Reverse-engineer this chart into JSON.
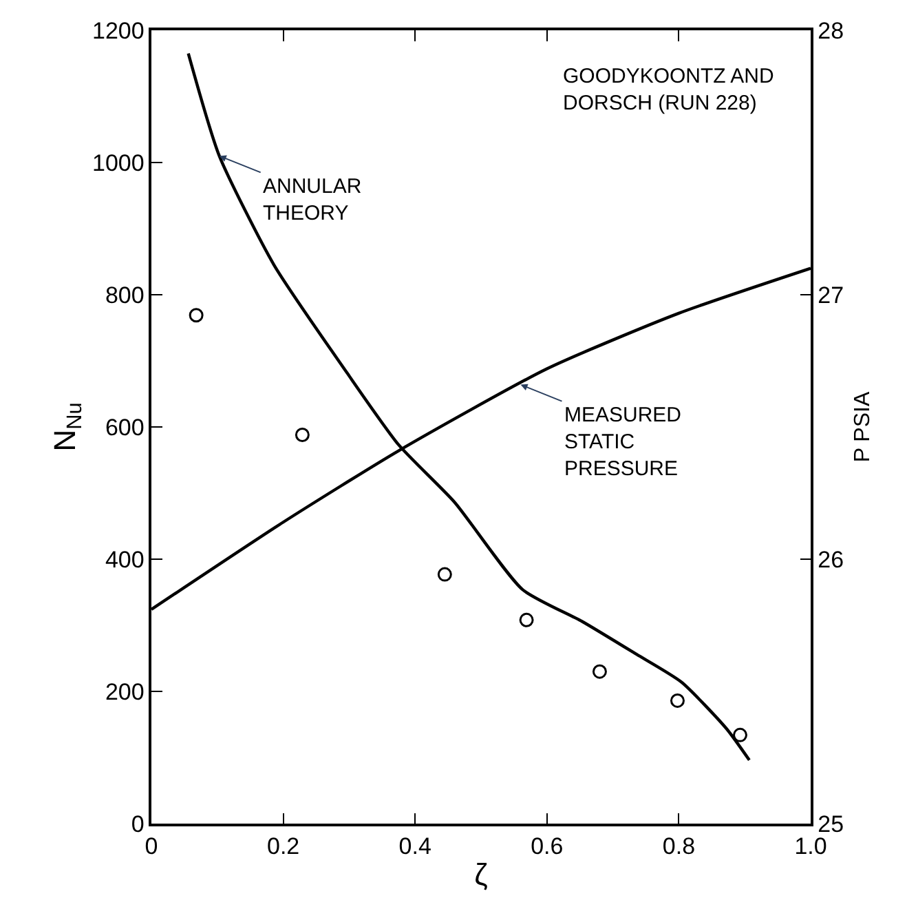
{
  "chart_data": {
    "type": "line",
    "xlabel": "ζ",
    "ylabel": "N$_{Nu}$",
    "y2label": "P PSIA",
    "xlim": [
      0,
      1.0
    ],
    "xticks": [
      0,
      0.2,
      0.4,
      0.6,
      0.8,
      {
        "value": 1.0,
        "label": "1.0"
      }
    ],
    "ylim": [
      0,
      1200
    ],
    "yticks": [
      0,
      200,
      400,
      600,
      800,
      1000,
      1200
    ],
    "y2lim": [
      25,
      28
    ],
    "y2ticks": [
      25,
      26,
      27,
      28
    ],
    "series": [
      {
        "color": "#000000",
        "marker": "none",
        "line_style": "solid",
        "x": [
          0.056,
          0.103,
          0.186,
          0.289,
          0.375,
          0.46,
          0.563,
          0.653,
          0.736,
          0.804,
          0.872,
          0.907
        ],
        "values": [
          1165,
          1010,
          845,
          693,
          573,
          486,
          354,
          306,
          256,
          214,
          144,
          96
        ]
      },
      {
        "axis": "y2",
        "color": "#000000",
        "marker": "none",
        "line_style": "solid",
        "x": [
          0,
          0.2,
          0.375,
          0.6,
          0.8,
          1.0
        ],
        "values": [
          25.81,
          26.14,
          26.41,
          26.72,
          26.93,
          27.1
        ]
      },
      {
        "type": "scatter",
        "color": "#000000",
        "marker": "circle",
        "x": [
          0.068,
          0.229,
          0.445,
          0.569,
          0.68,
          0.798,
          0.893
        ],
        "values": [
          769,
          588,
          377,
          308,
          230,
          186,
          134
        ]
      }
    ],
    "annotations": [
      "GOODYKOONTZ AND\nDORSCH (RUN 228)",
      {
        "text": "ANNULAR\nTHEORY",
        "x": 0.103,
        "y": 1010
      },
      {
        "text": "MEASURED\nSTATIC\nPRESSURE",
        "x": 0.56,
        "y": 664
      }
    ]
  }
}
